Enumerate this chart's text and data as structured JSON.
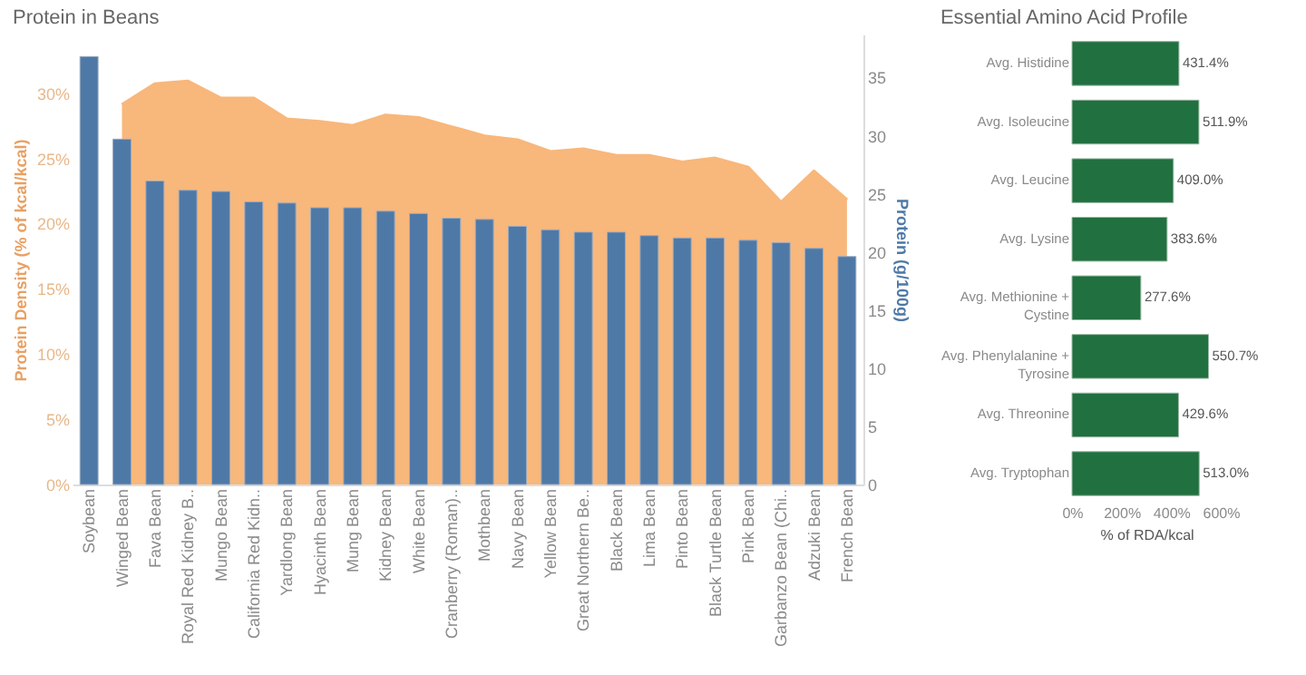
{
  "chart_data": [
    {
      "type": "bar",
      "title": "Protein in Beans",
      "ylabel": "Protein Density (% of kcal/kcal)",
      "y2label": "Protein (g/100g)",
      "categories": [
        "Soybean",
        "Winged Bean",
        "Fava Bean",
        "Royal Red Kidney B..",
        "Mungo Bean",
        "California Red Kidn..",
        "Yardlong Bean",
        "Hyacinth Bean",
        "Mung Bean",
        "Kidney Bean",
        "White Bean",
        "Cranberry (Roman)..",
        "Mothbean",
        "Navy Bean",
        "Yellow Bean",
        "Great Northern Be..",
        "Black Bean",
        "Lima Bean",
        "Pinto Bean",
        "Black Turtle Bean",
        "Pink Bean",
        "Garbanzo Bean (Chi..",
        "Adzuki Bean",
        "French Bean"
      ],
      "series": [
        {
          "type": "area",
          "color": "#f8b77b",
          "values": [
            null,
            29.1,
            30.7,
            30.9,
            29.6,
            29.6,
            28.0,
            27.8,
            27.5,
            28.3,
            28.1,
            27.4,
            26.7,
            26.4,
            25.5,
            25.7,
            25.2,
            25.2,
            24.7,
            25.0,
            24.3,
            21.6,
            24.0,
            21.8
          ]
        },
        {
          "type": "bar",
          "axis": "y2",
          "color": "#4e79a7",
          "values": [
            36.8,
            29.7,
            26.1,
            25.3,
            25.2,
            24.3,
            24.2,
            23.8,
            23.8,
            23.5,
            23.3,
            22.9,
            22.8,
            22.2,
            21.9,
            21.7,
            21.7,
            21.4,
            21.2,
            21.2,
            21.0,
            20.8,
            20.3,
            19.6
          ]
        }
      ],
      "ylim": [
        0,
        34.5
      ],
      "yticks": [
        {
          "value": 0,
          "label": "0%"
        },
        {
          "value": 5,
          "label": "5%"
        },
        {
          "value": 10,
          "label": "10%"
        },
        {
          "value": 15,
          "label": "15%"
        },
        {
          "value": 20,
          "label": "20%"
        },
        {
          "value": 25,
          "label": "25%"
        },
        {
          "value": 30,
          "label": "30%"
        }
      ],
      "y2lim": [
        0,
        38.7
      ],
      "y2ticks": [
        0,
        5,
        10,
        15,
        20,
        25,
        30,
        35
      ]
    },
    {
      "type": "bar",
      "orientation": "horizontal",
      "title": "Essential Amino Acid Profile",
      "xlabel": "% of RDA/kcal",
      "categories": [
        "Avg. Histidine",
        "Avg. Isoleucine",
        "Avg. Leucine",
        "Avg. Lysine",
        "Avg. Methionine +\nCystine",
        "Avg. Phenylalanine +\nTyrosine",
        "Avg. Threonine",
        "Avg. Tryptophan"
      ],
      "values": [
        431.4,
        511.9,
        409.0,
        383.6,
        277.6,
        550.7,
        429.6,
        513.0
      ],
      "value_labels": [
        "431.4%",
        "511.9%",
        "409.0%",
        "383.6%",
        "277.6%",
        "550.7%",
        "429.6%",
        "513.0%"
      ],
      "color": "#21703f",
      "xlim": [
        0,
        600
      ],
      "xticks": [
        {
          "value": 0,
          "label": "0%"
        },
        {
          "value": 200,
          "label": "200%"
        },
        {
          "value": 400,
          "label": "400%"
        },
        {
          "value": 600,
          "label": "600%"
        }
      ]
    }
  ]
}
